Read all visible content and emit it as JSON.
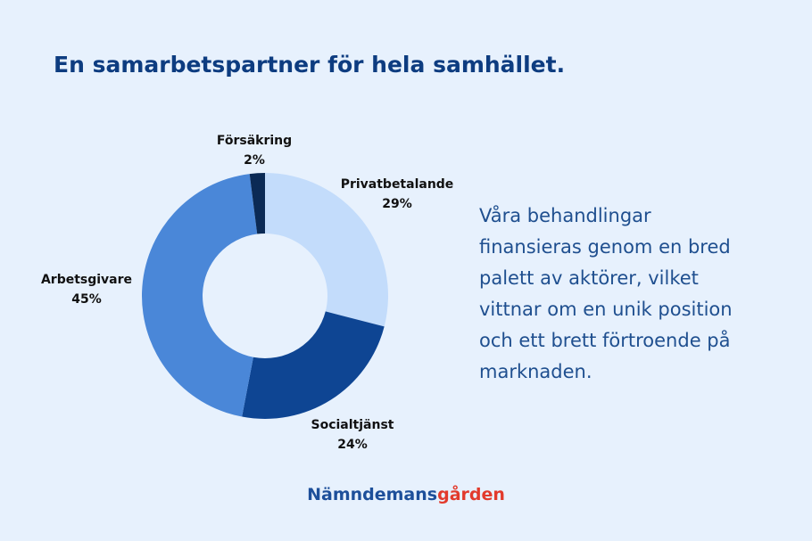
{
  "chart_data": {
    "type": "donut",
    "title": "En samarbetspartner för hela samhället.",
    "categories": [
      "Privatbetalande",
      "Socialtjänst",
      "Arbetsgivare",
      "Försäkring"
    ],
    "values": [
      29,
      24,
      45,
      2
    ],
    "value_labels": [
      "29%",
      "24%",
      "45%",
      "2%"
    ],
    "colors": [
      "#c3dcfb",
      "#0e4593",
      "#4a87d8",
      "#0b2a55"
    ]
  },
  "text": {
    "lines": [
      "Våra behandlingar",
      "finansieras genom en bred",
      "palett av aktörer, vilket",
      "vittnar om en unik position",
      "och ett brett förtroende på",
      "marknaden."
    ]
  },
  "logo": {
    "part1": "Nämndemans",
    "part2": "gården"
  }
}
